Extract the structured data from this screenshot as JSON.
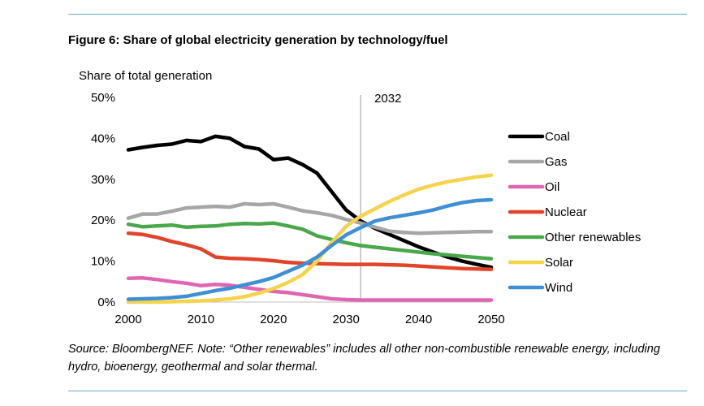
{
  "figure": {
    "title": "Figure 6: Share of global electricity generation by technology/fuel",
    "source": "Source: BloombergNEF. Note: “Other renewables” includes all other non-combustible renewable energy, including hydro, bioenergy, geothermal and solar thermal."
  },
  "colors": {
    "rule": "#6aa6d6",
    "marker_line": "#999999"
  },
  "chart_data": {
    "type": "line",
    "title": "",
    "xlabel": "",
    "ylabel": "Share of total generation",
    "x": [
      2000,
      2002,
      2004,
      2006,
      2008,
      2010,
      2012,
      2014,
      2016,
      2018,
      2020,
      2022,
      2024,
      2026,
      2028,
      2030,
      2032,
      2034,
      2036,
      2038,
      2040,
      2042,
      2044,
      2046,
      2048,
      2050
    ],
    "xlim": [
      2000,
      2050
    ],
    "xticks": [
      "2000",
      "2010",
      "2020",
      "2030",
      "2040",
      "2050"
    ],
    "ylim": [
      0,
      50
    ],
    "yticks": [
      "0%",
      "10%",
      "20%",
      "30%",
      "40%",
      "50%"
    ],
    "grid": false,
    "legend_position": "right",
    "annotation": {
      "x": 2032,
      "label": "2032"
    },
    "series": [
      {
        "name": "Coal",
        "color": "#000000",
        "values": [
          37.2,
          37.8,
          38.3,
          38.6,
          39.5,
          39.2,
          40.5,
          40.0,
          38.0,
          37.4,
          34.8,
          35.2,
          33.6,
          31.5,
          27.0,
          22.5,
          19.8,
          18.0,
          16.5,
          15.0,
          13.5,
          12.2,
          11.0,
          10.0,
          9.2,
          8.5
        ]
      },
      {
        "name": "Gas",
        "color": "#a6a6a6",
        "values": [
          20.5,
          21.5,
          21.5,
          22.2,
          23.0,
          23.2,
          23.4,
          23.2,
          24.0,
          23.8,
          24.0,
          23.2,
          22.3,
          21.8,
          21.2,
          20.2,
          19.3,
          18.3,
          17.3,
          17.0,
          16.8,
          16.9,
          17.0,
          17.1,
          17.2,
          17.2
        ]
      },
      {
        "name": "Oil",
        "color": "#e066b2",
        "values": [
          5.8,
          5.9,
          5.5,
          5.0,
          4.6,
          4.0,
          4.3,
          4.1,
          3.6,
          3.1,
          2.6,
          2.3,
          1.8,
          1.3,
          0.8,
          0.6,
          0.5,
          0.5,
          0.5,
          0.5,
          0.5,
          0.5,
          0.5,
          0.5,
          0.5,
          0.5
        ]
      },
      {
        "name": "Nuclear",
        "color": "#e0452b",
        "values": [
          16.8,
          16.5,
          15.8,
          14.8,
          14.0,
          13.0,
          11.0,
          10.7,
          10.6,
          10.4,
          10.1,
          9.7,
          9.5,
          9.4,
          9.3,
          9.2,
          9.2,
          9.2,
          9.1,
          9.0,
          8.8,
          8.6,
          8.4,
          8.2,
          8.1,
          8.0
        ]
      },
      {
        "name": "Other renewables",
        "color": "#4aa84a",
        "values": [
          19.0,
          18.4,
          18.6,
          18.8,
          18.3,
          18.5,
          18.6,
          19.0,
          19.2,
          19.1,
          19.3,
          18.6,
          17.8,
          16.2,
          15.3,
          14.5,
          13.8,
          13.4,
          13.0,
          12.6,
          12.2,
          11.8,
          11.5,
          11.2,
          10.9,
          10.6
        ]
      },
      {
        "name": "Solar",
        "color": "#f5d34a",
        "values": [
          0.0,
          0.0,
          0.0,
          0.1,
          0.2,
          0.3,
          0.5,
          0.8,
          1.3,
          2.2,
          3.3,
          4.8,
          6.7,
          10.0,
          14.5,
          18.5,
          21.0,
          22.8,
          24.6,
          26.2,
          27.6,
          28.6,
          29.4,
          30.0,
          30.6,
          31.0
        ]
      },
      {
        "name": "Wind",
        "color": "#3d8fd6",
        "values": [
          0.7,
          0.8,
          0.9,
          1.1,
          1.4,
          2.1,
          2.8,
          3.4,
          4.2,
          5.0,
          6.0,
          7.5,
          9.0,
          11.0,
          13.8,
          16.4,
          18.2,
          19.8,
          20.6,
          21.2,
          21.8,
          22.5,
          23.5,
          24.3,
          24.8,
          25.0
        ]
      }
    ]
  }
}
